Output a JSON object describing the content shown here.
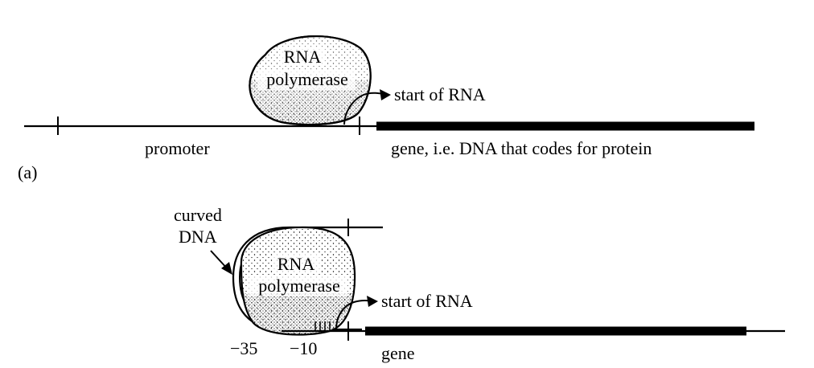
{
  "panel_a": {
    "panel_label": "(a)",
    "polymerase_line1": "RNA",
    "polymerase_line2": "polymerase",
    "start_label": "start of RNA",
    "promoter_label": "promoter",
    "gene_label": "gene, i.e. DNA that codes for protein"
  },
  "panel_b": {
    "curved_label_line1": "curved",
    "curved_label_line2": "DNA",
    "polymerase_line1": "RNA",
    "polymerase_line2": "polymerase",
    "start_label": "start of RNA",
    "minus35_label": "−35",
    "minus10_label": "−10",
    "gene_label": "gene"
  },
  "colors": {
    "ink": "#000000",
    "background": "#ffffff"
  }
}
